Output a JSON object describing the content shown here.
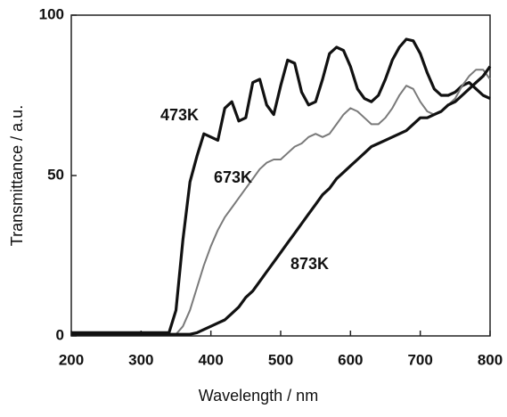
{
  "chart_data": {
    "type": "line",
    "x_label": "Wavelength / nm",
    "y_label": "Transmittance / a.u.",
    "x": [
      200,
      210,
      220,
      230,
      240,
      250,
      260,
      270,
      280,
      290,
      300,
      310,
      320,
      330,
      340,
      350,
      360,
      370,
      380,
      390,
      400,
      410,
      420,
      430,
      440,
      450,
      460,
      470,
      480,
      490,
      500,
      510,
      520,
      530,
      540,
      550,
      560,
      570,
      580,
      590,
      600,
      610,
      620,
      630,
      640,
      650,
      660,
      670,
      680,
      690,
      700,
      710,
      720,
      730,
      740,
      750,
      760,
      770,
      780,
      790,
      800
    ],
    "series": [
      {
        "name": "473K",
        "color": "#111111",
        "width": 3.2,
        "values": [
          1,
          1,
          1,
          1,
          1,
          1,
          1,
          1,
          1,
          1,
          1,
          1,
          1,
          1,
          1,
          8,
          30,
          48,
          56,
          63,
          62,
          61,
          71,
          73,
          67,
          68,
          79,
          80,
          72,
          69,
          78,
          86,
          85,
          76,
          72,
          73,
          80,
          88,
          90,
          89,
          84,
          77,
          74,
          73,
          75,
          80,
          86,
          90,
          92.5,
          92,
          88,
          82,
          77,
          75,
          75,
          76,
          78,
          79,
          77,
          75,
          74
        ]
      },
      {
        "name": "673K",
        "color": "#7a7a7a",
        "width": 2,
        "values": [
          0.5,
          0.5,
          0.5,
          0.5,
          0.5,
          0.5,
          0.5,
          0.5,
          0.5,
          0.5,
          0.5,
          0.5,
          0.5,
          0.5,
          0.5,
          0.5,
          3,
          8,
          15,
          22,
          28,
          33,
          37,
          40,
          43,
          46,
          49,
          52,
          54,
          55,
          55,
          57,
          59,
          60,
          62,
          63,
          62,
          63,
          66,
          69,
          71,
          70,
          68,
          66,
          66,
          68,
          71,
          75,
          78,
          77,
          73,
          70,
          69,
          70,
          72,
          74,
          78,
          81,
          83,
          83,
          80
        ]
      },
      {
        "name": "873K",
        "color": "#111111",
        "width": 3.2,
        "values": [
          0.5,
          0.5,
          0.5,
          0.5,
          0.5,
          0.5,
          0.5,
          0.5,
          0.5,
          0.5,
          0.5,
          0.5,
          0.5,
          0.5,
          0.5,
          0.5,
          0.5,
          0.5,
          1,
          2,
          3,
          4,
          5,
          7,
          9,
          12,
          14,
          17,
          20,
          23,
          26,
          29,
          32,
          35,
          38,
          41,
          44,
          46,
          49,
          51,
          53,
          55,
          57,
          59,
          60,
          61,
          62,
          63,
          64,
          66,
          68,
          68,
          69,
          70,
          72,
          73,
          75,
          77,
          79,
          81,
          84
        ]
      }
    ],
    "xlim": [
      200,
      800
    ],
    "ylim": [
      0,
      100
    ],
    "xticks": [
      200,
      300,
      400,
      500,
      600,
      700,
      800
    ],
    "yticks": [
      0,
      50,
      100
    ],
    "grid": false
  }
}
